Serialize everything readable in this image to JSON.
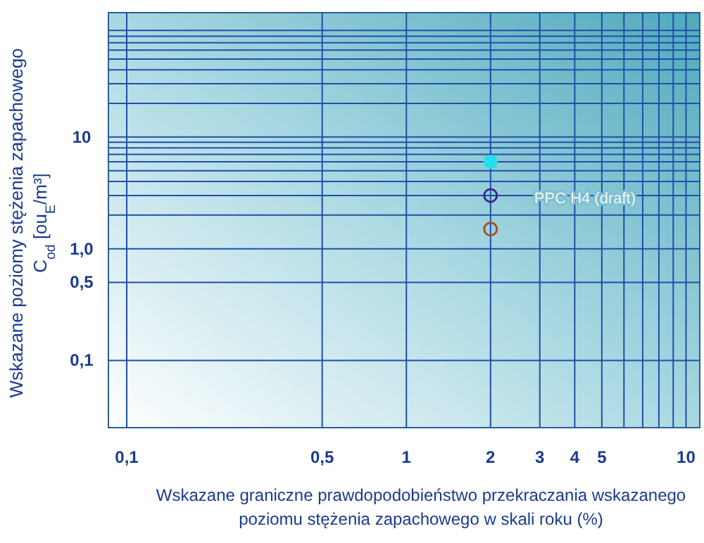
{
  "chart_data": {
    "type": "scatter",
    "xlabel": "Wskazane graniczne prawdopodobieństwo przekraczania wskazanego\npoziomu stężenia zapachowego w skali roku (%)",
    "ylabel": "Wskazane poziomy stężenia zapachowego\nC$_{od}$ [ou$_{E}$/m³]",
    "log": "xy",
    "grid": true,
    "marker": "circle",
    "x": [
      2
    ],
    "xlim": [
      0.086,
      11.2
    ],
    "ylim": [
      0.025,
      130
    ],
    "xticks": [
      {
        "value": 0.1,
        "label": "0,1"
      },
      {
        "value": 0.5,
        "label": "0,5"
      },
      1,
      2,
      3,
      4,
      5,
      {
        "value": 6,
        "label": null
      },
      {
        "value": 7,
        "label": null
      },
      {
        "value": 8,
        "label": null
      },
      {
        "value": 9,
        "label": null
      },
      10
    ],
    "yticks": [
      {
        "value": 0.1,
        "label": "0,1"
      },
      {
        "value": 0.5,
        "label": "0,5"
      },
      {
        "value": 1,
        "label": "1,0"
      },
      {
        "value": 2,
        "label": null
      },
      {
        "value": 3,
        "label": null
      },
      {
        "value": 4,
        "label": null
      },
      {
        "value": 5,
        "label": null
      },
      {
        "value": 6,
        "label": null
      },
      {
        "value": 7,
        "label": null
      },
      {
        "value": 8,
        "label": null
      },
      {
        "value": 9,
        "label": null
      },
      10,
      {
        "value": 20,
        "label": null
      },
      {
        "value": 30,
        "label": null
      },
      {
        "value": 40,
        "label": null
      },
      {
        "value": 50,
        "label": null
      },
      {
        "value": 60,
        "label": null
      },
      {
        "value": 70,
        "label": null
      },
      {
        "value": 80,
        "label": null
      },
      {
        "value": 90,
        "label": null
      }
    ],
    "series": [
      {
        "color": "#22e0ee",
        "values": [
          6
        ]
      },
      {
        "color": "#3a2a8c",
        "values": [
          3
        ]
      },
      {
        "color": "#a0522d",
        "values": [
          1.5
        ]
      }
    ],
    "annotations": [
      "PPC H4  (draft)"
    ]
  }
}
